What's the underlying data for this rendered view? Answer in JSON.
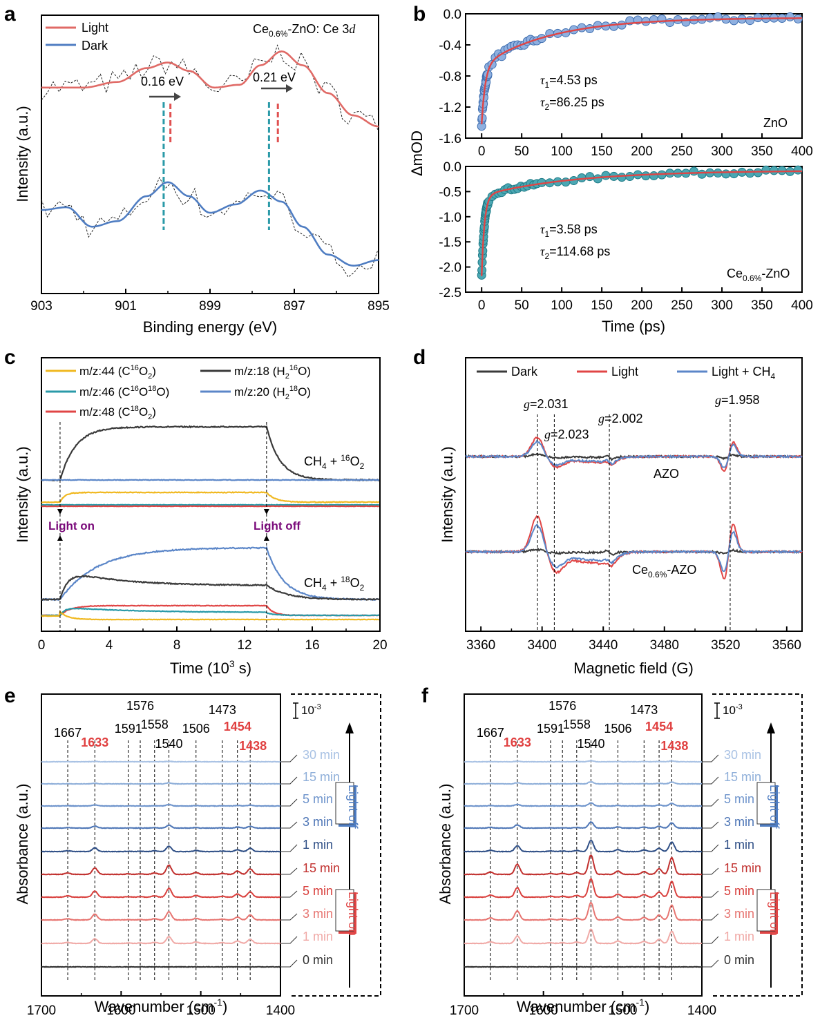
{
  "panels": {
    "a": {
      "letter": "a",
      "title_prefix": "Ce",
      "title_sub": "0.6%",
      "title_suffix": "-ZnO: Ce 3",
      "title_italic": "d",
      "legend": [
        "Light",
        "Dark"
      ],
      "shift_labels": [
        "0.16 eV",
        "0.21 eV"
      ],
      "xlabel": "Binding energy (eV)",
      "ylabel": "Intensity (a.u.)",
      "xticks": [
        "903",
        "901",
        "899",
        "897",
        "895"
      ]
    },
    "b": {
      "letter": "b",
      "ylabel": "ΔmOD",
      "xlabel": "Time (ps)",
      "xticks": [
        "0",
        "50",
        "100",
        "150",
        "200",
        "250",
        "300",
        "350",
        "400"
      ],
      "top": {
        "yticks": [
          "0.0",
          "-0.4",
          "-0.8",
          "-1.2",
          "-1.6"
        ],
        "tau1_lbl": "τ",
        "tau1_sub": "1",
        "tau1_val": "=4.53 ps",
        "tau2_lbl": "τ",
        "tau2_sub": "2",
        "tau2_val": "=86.25 ps",
        "sample": "ZnO"
      },
      "bottom": {
        "yticks": [
          "0.0",
          "-0.5",
          "-1.0",
          "-1.5",
          "-2.0",
          "-2.5"
        ],
        "tau1_lbl": "τ",
        "tau1_sub": "1",
        "tau1_val": "=3.58 ps",
        "tau2_lbl": "τ",
        "tau2_sub": "2",
        "tau2_val": "=114.68 ps",
        "sample_prefix": "Ce",
        "sample_sub": "0.6%",
        "sample_suffix": "-ZnO"
      }
    },
    "c": {
      "letter": "c",
      "legend": [
        {
          "pre": "m/z:44 (C",
          "s1": "16",
          "mid": "O",
          "s2": "",
          "sub": "2",
          "post": ")"
        },
        {
          "pre": "m/z:46 (C",
          "s1": "16",
          "mid": "O",
          "s2": "18",
          "sub": "",
          "post": "O)"
        },
        {
          "pre": "m/z:48 (C",
          "s1": "18",
          "mid": "O",
          "s2": "",
          "sub": "2",
          "post": ")"
        },
        {
          "pre": "m/z:18 (H",
          "sub1": "2",
          "s1": "16",
          "post": "O)"
        },
        {
          "pre": "m/z:20 (H",
          "sub1": "2",
          "s1": "18",
          "post": "O)"
        }
      ],
      "top_gas": {
        "pre": "CH",
        "sub": "4",
        "mid": " + ",
        "sup": "16",
        "post": "O",
        "sub2": "2"
      },
      "bottom_gas": {
        "pre": "CH",
        "sub": "4",
        "mid": " + ",
        "sup": "18",
        "post": "O",
        "sub2": "2"
      },
      "light_on": "Light on",
      "light_off": "Light off",
      "xlabel_pre": "Time (10",
      "xlabel_sup": "3",
      "xlabel_post": " s)",
      "ylabel": "Intensity (a.u.)",
      "xticks": [
        "0",
        "4",
        "8",
        "12",
        "16",
        "20"
      ]
    },
    "d": {
      "letter": "d",
      "legend": [
        "Dark",
        "Light",
        "Light + CH",
        "4"
      ],
      "g_labels": [
        "=2.031",
        "=2.023",
        "=2.002",
        "=1.958"
      ],
      "g_symbol": "g",
      "sample_top": "AZO",
      "sample_bottom_prefix": "Ce",
      "sample_bottom_sub": "0.6%",
      "sample_bottom_suffix": "-AZO",
      "xlabel": "Magnetic field (G)",
      "ylabel": "Intensity (a.u.)",
      "xticks": [
        "3360",
        "3400",
        "3440",
        "3480",
        "3520",
        "3560"
      ]
    },
    "e": {
      "letter": "e",
      "peaks_black": [
        "1667",
        "1591",
        "1576",
        "1558",
        "1540",
        "1506",
        "1473"
      ],
      "peaks_red": [
        "1633",
        "1454",
        "1438"
      ],
      "scale": "10",
      "scale_sup": "-3",
      "times": [
        "30 min",
        "15 min",
        "5 min",
        "3 min",
        "1 min",
        "15 min",
        "5 min",
        "3 min",
        "1 min",
        "0 min"
      ],
      "light_off": "Light off",
      "light_on": "Light on",
      "xlabel_pre": "Wavenumber (cm",
      "xlabel_sup": "-1",
      "xlabel_post": ")",
      "ylabel": "Absorbance (a.u.)",
      "xticks": [
        "1700",
        "1600",
        "1500",
        "1400"
      ]
    },
    "f": {
      "letter": "f",
      "peaks_black": [
        "1667",
        "1591",
        "1576",
        "1558",
        "1540",
        "1506",
        "1473"
      ],
      "peaks_red": [
        "1633",
        "1454",
        "1438"
      ],
      "scale": "10",
      "scale_sup": "-3",
      "times": [
        "30 min",
        "15 min",
        "5 min",
        "3 min",
        "1 min",
        "15 min",
        "5 min",
        "3 min",
        "1 min",
        "0 min"
      ],
      "light_off": "Light off",
      "light_on": "Light on",
      "xlabel_pre": "Wavenumber (cm",
      "xlabel_sup": "-1",
      "xlabel_post": ")",
      "ylabel": "Absorbance (a.u.)",
      "xticks": [
        "1700",
        "1600",
        "1500",
        "1400"
      ]
    }
  },
  "colors": {
    "light": "#e06a66",
    "dark": "#4f7dc2",
    "teal": "#2a9aa8",
    "dash_red": "#e05050",
    "orange": "#f0b820",
    "gray": "#3a3a3a",
    "blue": "#5b86c8",
    "red": "#e04545",
    "purple": "#7a0a7a",
    "time_colors": [
      "#a9c2e4",
      "#8fafd9",
      "#6d93cb",
      "#4e76b6",
      "#2f4f86",
      "#c1302e",
      "#d9413e",
      "#e77571",
      "#f0a9a6",
      "#333333"
    ]
  },
  "chart_data": [
    {
      "panel": "a",
      "type": "line",
      "title": "Ce0.6%-ZnO: Ce 3d",
      "xlabel": "Binding energy (eV)",
      "ylabel": "Intensity (a.u.)",
      "xlim": [
        903,
        895
      ],
      "series": [
        {
          "name": "Light",
          "x": [
            903,
            902,
            901.2,
            900.5,
            900,
            899.5,
            898.9,
            898.3,
            897.8,
            897.3,
            896.8,
            896.2,
            895.6,
            895
          ],
          "y": [
            0.74,
            0.74,
            0.76,
            0.81,
            0.83,
            0.8,
            0.74,
            0.75,
            0.82,
            0.87,
            0.82,
            0.72,
            0.64,
            0.6
          ]
        },
        {
          "name": "Dark",
          "x": [
            903,
            902.4,
            901.8,
            901.2,
            900.5,
            900,
            899.5,
            899,
            898.4,
            897.8,
            897.3,
            896.8,
            896.2,
            895.6,
            895
          ],
          "y": [
            0.3,
            0.31,
            0.24,
            0.26,
            0.35,
            0.4,
            0.35,
            0.29,
            0.32,
            0.37,
            0.33,
            0.24,
            0.14,
            0.1,
            0.12
          ]
        }
      ],
      "markers": {
        "Dark": [
          900.1,
          897.6
        ],
        "Light": [
          899.94,
          897.39
        ]
      }
    },
    {
      "panel": "b-top",
      "type": "scatter",
      "sample": "ZnO",
      "xlabel": "Time (ps)",
      "ylabel": "ΔmOD",
      "xlim": [
        -20,
        400
      ],
      "ylim": [
        -1.6,
        0.0
      ],
      "fit": {
        "A1": 0.75,
        "tau1": 4.53,
        "A2": 0.62,
        "tau2": 86.25,
        "offset": -0.05
      }
    },
    {
      "panel": "b-bottom",
      "type": "scatter",
      "sample": "Ce0.6%-ZnO",
      "xlabel": "Time (ps)",
      "ylabel": "ΔmOD",
      "xlim": [
        -20,
        400
      ],
      "ylim": [
        -2.5,
        0.0
      ],
      "fit": {
        "A1": 1.6,
        "tau1": 3.58,
        "A2": 0.5,
        "tau2": 114.68,
        "offset": -0.08
      }
    },
    {
      "panel": "c",
      "type": "line",
      "xlabel": "Time (10^3 s)",
      "ylabel": "Intensity (a.u.)",
      "xlim": [
        0,
        20
      ],
      "light_on_time": 1.1,
      "light_off_time": 13.3,
      "top_series": [
        "m/z:18 (H2 16O)",
        "m/z:20 (H2 18O)",
        "m/z:44 (C16O2)",
        "m/z:46 (C16O18O)",
        "m/z:48 (C18O2)"
      ],
      "bottom_series": [
        "m/z:20 (H2 18O)",
        "m/z:18 (H2 16O)",
        "m/z:48 (C18O2)",
        "m/z:46 (C16O18O)",
        "m/z:44 (C16O2)"
      ]
    },
    {
      "panel": "d",
      "type": "line",
      "xlabel": "Magnetic field (G)",
      "ylabel": "Intensity (a.u.)",
      "xlim": [
        3350,
        3570
      ],
      "g_positions_G": [
        3397,
        3408,
        3444,
        3523
      ],
      "series": [
        "Dark",
        "Light",
        "Light + CH4"
      ],
      "samples": [
        "AZO",
        "Ce0.6%-AZO"
      ]
    },
    {
      "panel": "e",
      "type": "line",
      "xlabel": "Wavenumber (cm-1)",
      "ylabel": "Absorbance (a.u.)",
      "xlim": [
        1700,
        1400
      ],
      "peaks_cm-1": [
        1667,
        1633,
        1591,
        1576,
        1558,
        1540,
        1506,
        1473,
        1454,
        1438
      ],
      "peak_height": [
        0.15,
        0.7,
        0.05,
        0.05,
        0.15,
        1.0,
        0.2,
        0.1,
        0.35,
        0.6
      ],
      "traces": [
        "30 min",
        "15 min",
        "5 min",
        "3 min",
        "1 min",
        "15 min",
        "5 min",
        "3 min",
        "1 min",
        "0 min"
      ]
    },
    {
      "panel": "f",
      "type": "line",
      "xlabel": "Wavenumber (cm-1)",
      "ylabel": "Absorbance (a.u.)",
      "xlim": [
        1700,
        1400
      ],
      "peaks_cm-1": [
        1667,
        1633,
        1591,
        1576,
        1558,
        1540,
        1506,
        1473,
        1454,
        1438
      ],
      "peak_height": [
        0.25,
        1.1,
        0.1,
        0.1,
        0.2,
        2.1,
        0.35,
        0.3,
        0.6,
        1.8
      ],
      "traces": [
        "30 min",
        "15 min",
        "5 min",
        "3 min",
        "1 min",
        "15 min",
        "5 min",
        "3 min",
        "1 min",
        "0 min"
      ]
    }
  ]
}
